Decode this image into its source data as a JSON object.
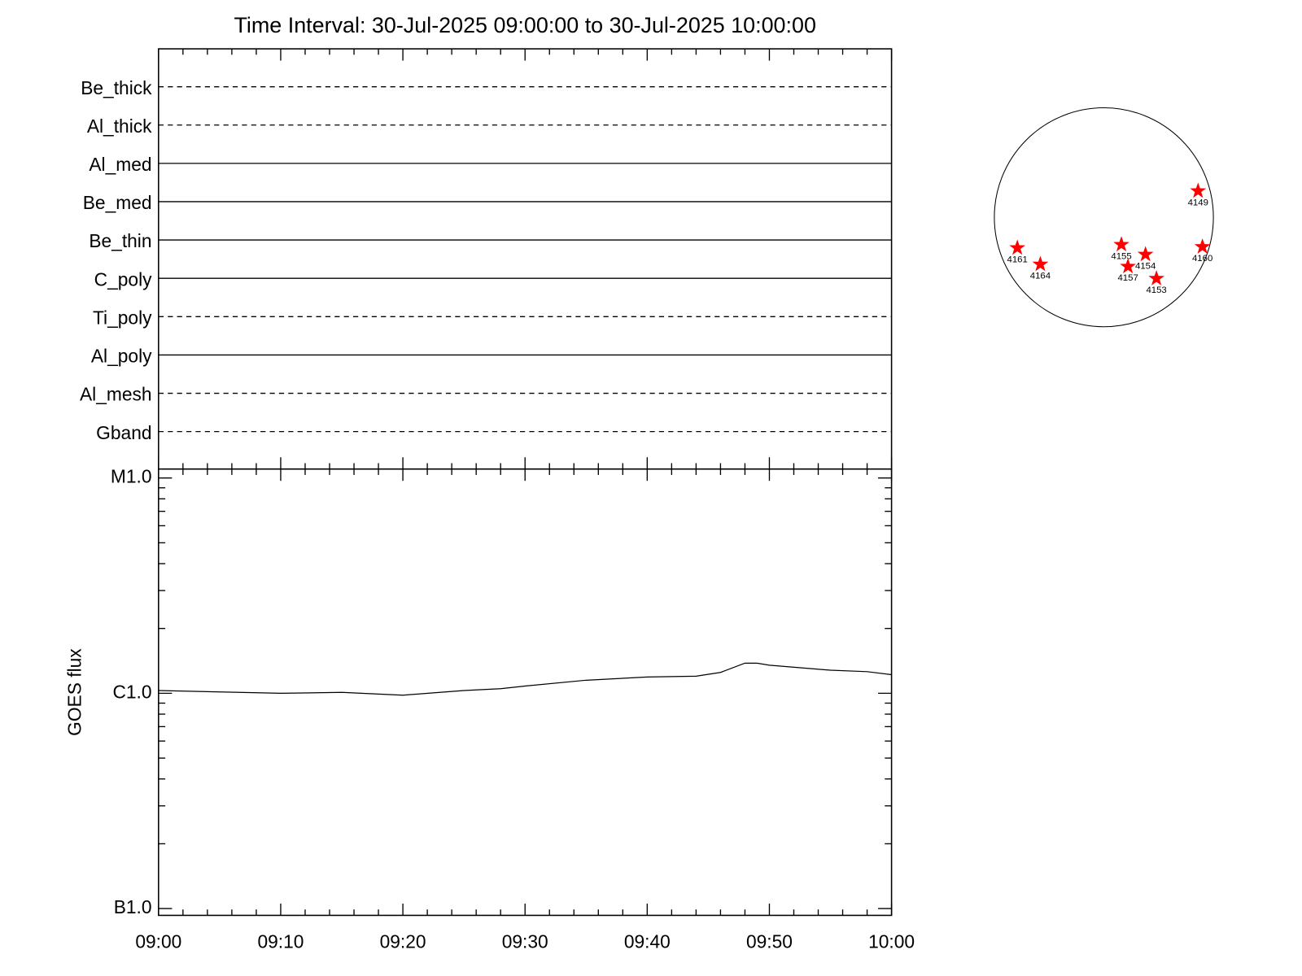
{
  "chart_data": [
    {
      "type": "timeline",
      "title": "Time Interval: 30-Jul-2025 09:00:00 to 30-Jul-2025 10:00:00",
      "filters": [
        {
          "name": "Be_thick",
          "style": "dashed"
        },
        {
          "name": "Al_thick",
          "style": "dashed"
        },
        {
          "name": "Al_med",
          "style": "solid"
        },
        {
          "name": "Be_med",
          "style": "solid"
        },
        {
          "name": "Be_thin",
          "style": "solid"
        },
        {
          "name": "C_poly",
          "style": "solid"
        },
        {
          "name": "Ti_poly",
          "style": "dashed"
        },
        {
          "name": "Al_poly",
          "style": "solid"
        },
        {
          "name": "Al_mesh",
          "style": "dashed"
        },
        {
          "name": "Gband",
          "style": "dashed"
        }
      ]
    },
    {
      "type": "line",
      "ylabel": "GOES flux",
      "log_y": true,
      "x": [
        "09:00",
        "09:10",
        "09:15",
        "09:20",
        "09:25",
        "09:28",
        "09:30",
        "09:35",
        "09:40",
        "09:44",
        "09:46",
        "09:48",
        "09:49",
        "09:50",
        "09:55",
        "09:58",
        "10:00"
      ],
      "series": [
        {
          "name": "GOES",
          "color": "#000000",
          "values": [
            1.03e-06,
            1e-06,
            1.01e-06,
            9.8e-07,
            1.03e-06,
            1.05e-06,
            1.08e-06,
            1.15e-06,
            1.19e-06,
            1.2e-06,
            1.25e-06,
            1.38e-06,
            1.38e-06,
            1.35e-06,
            1.28e-06,
            1.26e-06,
            1.22e-06
          ]
        }
      ],
      "xlim": [
        "09:00",
        "10:00"
      ],
      "xticks": [
        "09:00",
        "09:10",
        "09:20",
        "09:30",
        "09:40",
        "09:50",
        "10:00"
      ],
      "xminorticks": [
        "09:02",
        "09:04",
        "09:06",
        "09:08",
        "09:12",
        "09:14",
        "09:16",
        "09:18",
        "09:22",
        "09:24",
        "09:26",
        "09:28",
        "09:32",
        "09:34",
        "09:36",
        "09:38",
        "09:42",
        "09:44",
        "09:46",
        "09:48",
        "09:52",
        "09:54",
        "09:56",
        "09:58"
      ],
      "ylim": [
        9.3e-08,
        1.1e-05
      ],
      "yticks": [
        {
          "value": 1e-07,
          "label": "B1.0"
        },
        {
          "value": 1e-06,
          "label": "C1.0"
        },
        {
          "value": 1e-05,
          "label": "M1.0"
        }
      ],
      "yminorticks": [
        2e-07,
        3e-07,
        4e-07,
        5e-07,
        6e-07,
        7e-07,
        8e-07,
        9e-07,
        2e-06,
        3e-06,
        4e-06,
        5e-06,
        6e-06,
        7e-06,
        8e-06,
        9e-06
      ]
    },
    {
      "type": "scatter",
      "color": "#ff0000",
      "regions": [
        {
          "number": 4149,
          "x": 0.86,
          "y": 0.24
        },
        {
          "number": 4161,
          "x": -0.79,
          "y": -0.28
        },
        {
          "number": 4164,
          "x": -0.58,
          "y": -0.43
        },
        {
          "number": 4155,
          "x": 0.16,
          "y": -0.25
        },
        {
          "number": 4154,
          "x": 0.38,
          "y": -0.34
        },
        {
          "number": 4157,
          "x": 0.22,
          "y": -0.45
        },
        {
          "number": 4153,
          "x": 0.48,
          "y": -0.56
        },
        {
          "number": 4160,
          "x": 0.9,
          "y": -0.27
        }
      ]
    }
  ]
}
